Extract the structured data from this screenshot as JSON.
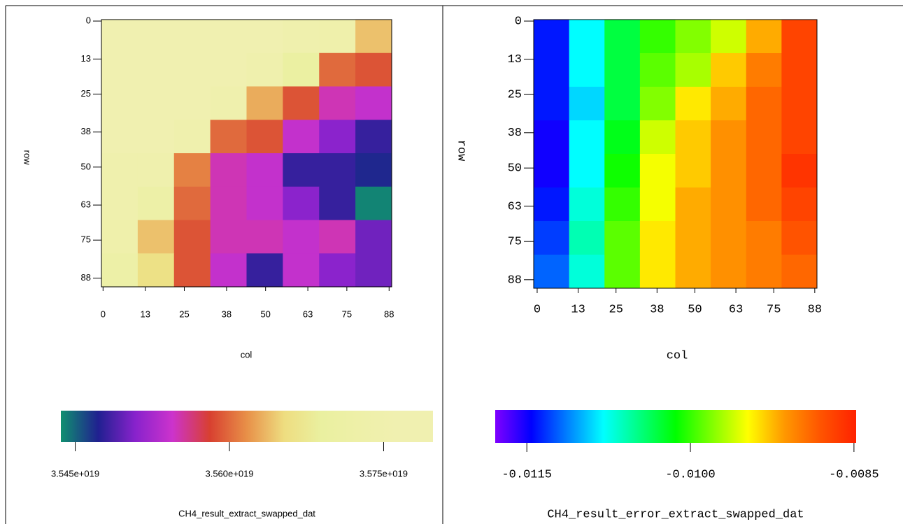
{
  "chart_data": [
    {
      "type": "heatmap",
      "title": "CH4_result_extract_swapped_dat",
      "xlabel": "col",
      "ylabel": "row",
      "xlim": [
        -0.5,
        88.8
      ],
      "ylim": [
        -0.5,
        91
      ],
      "xticks": [
        0,
        13,
        25,
        38,
        50,
        63,
        75,
        88
      ],
      "yticks": [
        0,
        13,
        25,
        38,
        50,
        63,
        75,
        88
      ],
      "zlim": [
        3.5436e+19,
        3.5798e+19
      ],
      "zticks": [
        {
          "value": 3.545e+19,
          "label": "3.545e+019"
        },
        {
          "value": 3.56e+19,
          "label": "3.560e+019"
        },
        {
          "value": 3.575e+19,
          "label": "3.575e+019"
        }
      ],
      "colormap": [
        "#109070",
        "#202090",
        "#8822cc",
        "#cc33cc",
        "#d84030",
        "#e89048",
        "#eedd80",
        "#eaf0a0",
        "#eef0a8",
        "#f0f0b0",
        "#f0f0b0"
      ],
      "values": [
        [
          3.576e+19,
          3.577e+19,
          3.577e+19,
          3.577e+19,
          3.576e+19,
          3.575e+19,
          3.574e+19,
          3.564e+19
        ],
        [
          3.576e+19,
          3.577e+19,
          3.577e+19,
          3.576e+19,
          3.575e+19,
          3.57e+19,
          3.56e+19,
          3.559e+19
        ],
        [
          3.576e+19,
          3.576e+19,
          3.576e+19,
          3.575e+19,
          3.563e+19,
          3.559e+19,
          3.555e+19,
          3.554e+19
        ],
        [
          3.576e+19,
          3.576e+19,
          3.575e+19,
          3.56e+19,
          3.559e+19,
          3.554e+19,
          3.551e+19,
          3.548e+19
        ],
        [
          3.575e+19,
          3.575e+19,
          3.561e+19,
          3.555e+19,
          3.554e+19,
          3.548e+19,
          3.548e+19,
          3.547e+19
        ],
        [
          3.575e+19,
          3.572e+19,
          3.56e+19,
          3.555e+19,
          3.554e+19,
          3.551e+19,
          3.548e+19,
          3.544e+19
        ],
        [
          3.574e+19,
          3.564e+19,
          3.559e+19,
          3.555e+19,
          3.555e+19,
          3.554e+19,
          3.555e+19,
          3.55e+19
        ],
        [
          3.572e+19,
          3.566e+19,
          3.559e+19,
          3.554e+19,
          3.548e+19,
          3.554e+19,
          3.551e+19,
          3.55e+19
        ]
      ]
    },
    {
      "type": "heatmap",
      "title": "CH4_result_error_extract_swapped_dat",
      "xlabel": "col",
      "ylabel": "row",
      "xlim": [
        -1.1,
        88.7
      ],
      "ylim": [
        -0.5,
        90.9
      ],
      "xticks": [
        0,
        13,
        25,
        38,
        50,
        63,
        75,
        88
      ],
      "yticks": [
        0,
        13,
        25,
        38,
        50,
        63,
        75,
        88
      ],
      "zlim": [
        -0.01179,
        -0.00848
      ],
      "zticks": [
        -0.0115,
        {
          "value": -0.01,
          "label": "-0.0100"
        },
        -0.0085
      ],
      "colormap": [
        "#7f00ff",
        "#0000ff",
        "#0080ff",
        "#00ffff",
        "#00ff80",
        "#00ff00",
        "#80ff00",
        "#ffff00",
        "#ff9900",
        "#ff5500",
        "#ff2200"
      ],
      "values": [
        [
          -0.0114,
          -0.0108,
          -0.0103,
          -0.01,
          -0.0098,
          -0.0096,
          -0.0092,
          -0.0087
        ],
        [
          -0.0114,
          -0.0108,
          -0.0103,
          -0.0099,
          -0.0097,
          -0.0093,
          -0.009,
          -0.0087
        ],
        [
          -0.0114,
          -0.0109,
          -0.0103,
          -0.0098,
          -0.0094,
          -0.0092,
          -0.0089,
          -0.0087
        ],
        [
          -0.0115,
          -0.0108,
          -0.0102,
          -0.0096,
          -0.0093,
          -0.0091,
          -0.0089,
          -0.0087
        ],
        [
          -0.0115,
          -0.0108,
          -0.0101,
          -0.0095,
          -0.0093,
          -0.0091,
          -0.0089,
          -0.0086
        ],
        [
          -0.0114,
          -0.0107,
          -0.01,
          -0.0095,
          -0.0092,
          -0.0091,
          -0.0089,
          -0.0087
        ],
        [
          -0.0113,
          -0.0106,
          -0.0099,
          -0.0094,
          -0.0092,
          -0.0091,
          -0.009,
          -0.0088
        ],
        [
          -0.0112,
          -0.0107,
          -0.0099,
          -0.0094,
          -0.0092,
          -0.0091,
          -0.009,
          -0.0089
        ]
      ]
    }
  ]
}
